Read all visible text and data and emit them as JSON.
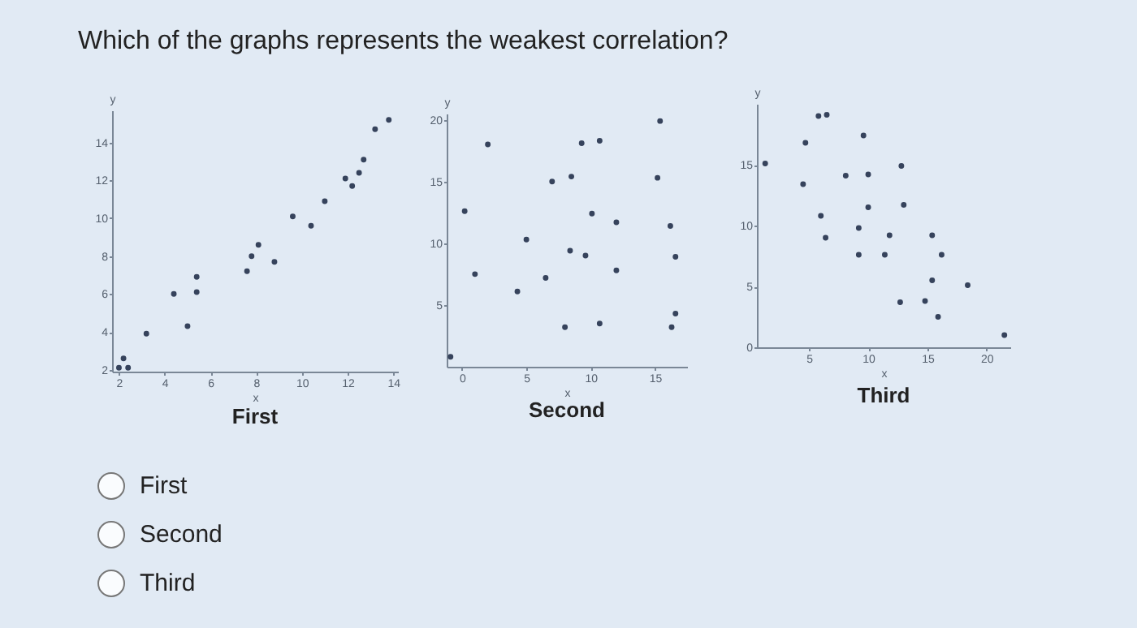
{
  "chart_data": [
    {
      "type": "other",
      "title": "Which of the graphs represents the weakest correlation?",
      "annotations": [
        "First",
        "Second",
        "Third"
      ]
    },
    {
      "type": "scatter",
      "xlabel": "x",
      "ylabel": "y",
      "annotations": [
        "First"
      ],
      "xlim": [
        1.7,
        14.2
      ],
      "ylim": [
        1.9,
        15.7
      ],
      "xticks": [
        2,
        4,
        6,
        8,
        10,
        12,
        14
      ],
      "yticks": [
        2,
        4,
        6,
        8,
        10,
        12,
        14
      ],
      "x": [
        2.0,
        2.2,
        2.4,
        3.2,
        4.4,
        5.0,
        5.4,
        5.4,
        7.6,
        7.8,
        8.1,
        8.8,
        9.6,
        10.4,
        11.0,
        11.9,
        12.2,
        12.5,
        12.7,
        13.2,
        13.8
      ],
      "series": [
        {
          "color": "#36435c",
          "values": [
            2.1,
            2.6,
            2.1,
            3.9,
            6.0,
            4.3,
            6.9,
            6.1,
            7.2,
            8.0,
            8.6,
            7.7,
            10.1,
            9.6,
            10.9,
            12.1,
            11.7,
            12.4,
            13.1,
            14.7,
            15.2
          ]
        }
      ]
    },
    {
      "type": "scatter",
      "xlabel": "x",
      "ylabel": "y",
      "annotations": [
        "Second"
      ],
      "xlim": [
        -1.2,
        17.5
      ],
      "ylim": [
        0,
        20.5
      ],
      "xticks": [
        0,
        5,
        10,
        15
      ],
      "yticks": [
        5,
        10,
        15,
        20
      ],
      "x": [
        -0.9,
        0.2,
        1.0,
        2.0,
        4.3,
        5.0,
        6.5,
        7.0,
        8.0,
        8.4,
        8.5,
        9.3,
        9.6,
        10.1,
        10.7,
        10.7,
        12.0,
        12.0,
        15.2,
        15.4,
        16.2,
        16.3,
        16.6,
        16.6
      ],
      "series": [
        {
          "color": "#36435c",
          "values": [
            0.8,
            12.6,
            7.5,
            18.0,
            6.1,
            10.3,
            7.2,
            15.0,
            3.2,
            9.4,
            15.4,
            18.1,
            9.0,
            12.4,
            18.3,
            3.5,
            11.7,
            7.8,
            15.3,
            19.9,
            11.4,
            3.2,
            4.3,
            8.9
          ]
        }
      ]
    },
    {
      "type": "scatter",
      "xlabel": "x",
      "ylabel": "y",
      "annotations": [
        "Third"
      ],
      "xlim": [
        0.6,
        22
      ],
      "ylim": [
        0,
        20
      ],
      "xticks": [
        5,
        10,
        15,
        20
      ],
      "yticks": [
        0,
        5,
        10,
        15
      ],
      "x": [
        1.3,
        4.5,
        4.7,
        5.8,
        6.5,
        6.0,
        6.4,
        8.1,
        9.6,
        9.2,
        9.2,
        10.0,
        10.0,
        11.4,
        11.8,
        12.8,
        13.0,
        12.7,
        14.8,
        15.4,
        15.4,
        15.9,
        16.2,
        18.4,
        21.5
      ],
      "series": [
        {
          "color": "#36435c",
          "values": [
            15.1,
            13.4,
            16.8,
            19.0,
            19.1,
            10.8,
            9.0,
            14.1,
            17.4,
            9.8,
            7.6,
            14.2,
            11.5,
            7.6,
            9.2,
            14.9,
            11.7,
            3.7,
            3.8,
            9.2,
            5.5,
            2.5,
            7.6,
            5.1,
            1.0
          ]
        }
      ]
    }
  ]
}
